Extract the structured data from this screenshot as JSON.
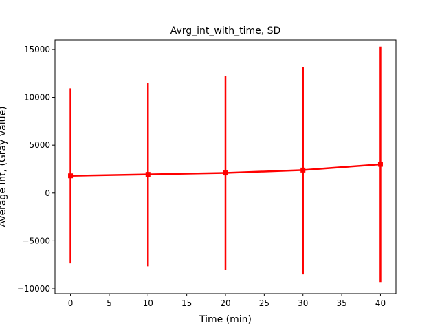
{
  "chart_data": {
    "type": "line",
    "title": "Avrg_int_with_time, SD",
    "xlabel": "Time (min)",
    "ylabel": "Average int, (Gray value)",
    "xlim": [
      -2,
      42
    ],
    "ylim": [
      -10500,
      16000
    ],
    "x_ticks": [
      0,
      5,
      10,
      15,
      20,
      25,
      30,
      35,
      40
    ],
    "y_ticks": [
      -10000,
      -5000,
      0,
      5000,
      10000,
      15000
    ],
    "x_tick_labels": [
      "0",
      "5",
      "10",
      "15",
      "20",
      "25",
      "30",
      "35",
      "40"
    ],
    "y_tick_labels": [
      "−10000",
      "−5000",
      "0",
      "5000",
      "10000",
      "15000"
    ],
    "grid": false,
    "series": [
      {
        "color": "#ff0000",
        "marker": "square",
        "x": [
          0,
          10,
          20,
          30,
          40
        ],
        "y": [
          1800,
          1950,
          2100,
          2400,
          3000
        ],
        "err_low": [
          -7350,
          -7650,
          -8000,
          -8500,
          -9300
        ],
        "err_high": [
          10950,
          11550,
          12200,
          13150,
          15300
        ]
      }
    ]
  }
}
